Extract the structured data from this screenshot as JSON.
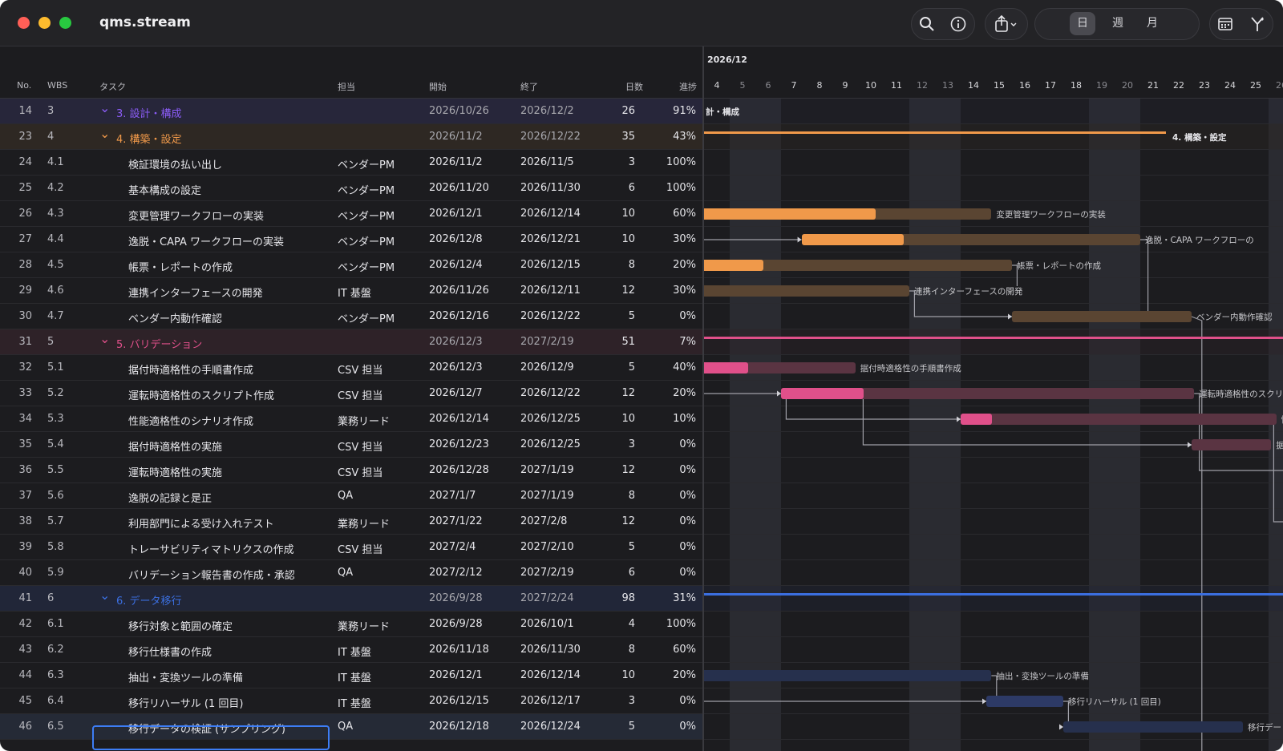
{
  "app": {
    "title": "qms.stream"
  },
  "toolbar": {
    "search_icon": "search-icon",
    "info_icon": "info-icon",
    "share_icon": "share-icon",
    "view_day": "日",
    "view_week": "週",
    "view_month": "月",
    "calendar_icon": "calendar-icon",
    "branch_icon": "branch-icon"
  },
  "columns": {
    "no": "No.",
    "wbs": "WBS",
    "task": "タスク",
    "owner": "担当",
    "start": "開始",
    "end": "終了",
    "days": "日数",
    "progress": "進捗"
  },
  "gantt": {
    "month_label": "2026/12",
    "days": [
      "4",
      "5",
      "6",
      "7",
      "8",
      "9",
      "10",
      "11",
      "12",
      "13",
      "14",
      "15",
      "16",
      "17",
      "18",
      "19",
      "20",
      "21",
      "22",
      "23",
      "24",
      "25",
      "26"
    ],
    "weekend_days": [
      "5",
      "6",
      "12",
      "13",
      "19",
      "20",
      "26"
    ]
  },
  "rows": [
    {
      "no": "14",
      "wbs": "3",
      "task": "3. 設計・構成",
      "owner": "",
      "start": "2026/10/26",
      "end": "2026/12/2",
      "days": "26",
      "progress": "91%",
      "group": true,
      "color": "#8b5cf6"
    },
    {
      "no": "23",
      "wbs": "4",
      "task": "4. 構築・設定",
      "owner": "",
      "start": "2026/11/2",
      "end": "2026/12/22",
      "days": "35",
      "progress": "43%",
      "group": true,
      "color": "#f0994a"
    },
    {
      "no": "24",
      "wbs": "4.1",
      "task": "検証環境の払い出し",
      "owner": "ベンダーPM",
      "start": "2026/11/2",
      "end": "2026/11/5",
      "days": "3",
      "progress": "100%"
    },
    {
      "no": "25",
      "wbs": "4.2",
      "task": "基本構成の設定",
      "owner": "ベンダーPM",
      "start": "2026/11/20",
      "end": "2026/11/30",
      "days": "6",
      "progress": "100%"
    },
    {
      "no": "26",
      "wbs": "4.3",
      "task": "変更管理ワークフローの実装",
      "owner": "ベンダーPM",
      "start": "2026/12/1",
      "end": "2026/12/14",
      "days": "10",
      "progress": "60%"
    },
    {
      "no": "27",
      "wbs": "4.4",
      "task": "逸脱・CAPA ワークフローの実装",
      "owner": "ベンダーPM",
      "start": "2026/12/8",
      "end": "2026/12/21",
      "days": "10",
      "progress": "30%"
    },
    {
      "no": "28",
      "wbs": "4.5",
      "task": "帳票・レポートの作成",
      "owner": "ベンダーPM",
      "start": "2026/12/4",
      "end": "2026/12/15",
      "days": "8",
      "progress": "20%"
    },
    {
      "no": "29",
      "wbs": "4.6",
      "task": "連携インターフェースの開発",
      "owner": "IT 基盤",
      "start": "2026/11/26",
      "end": "2026/12/11",
      "days": "12",
      "progress": "30%"
    },
    {
      "no": "30",
      "wbs": "4.7",
      "task": "ベンダー内動作確認",
      "owner": "ベンダーPM",
      "start": "2026/12/16",
      "end": "2026/12/22",
      "days": "5",
      "progress": "0%"
    },
    {
      "no": "31",
      "wbs": "5",
      "task": "5. バリデーション",
      "owner": "",
      "start": "2026/12/3",
      "end": "2027/2/19",
      "days": "51",
      "progress": "7%",
      "group": true,
      "color": "#e0508a"
    },
    {
      "no": "32",
      "wbs": "5.1",
      "task": "据付時適格性の手順書作成",
      "owner": "CSV 担当",
      "start": "2026/12/3",
      "end": "2026/12/9",
      "days": "5",
      "progress": "40%"
    },
    {
      "no": "33",
      "wbs": "5.2",
      "task": "運転時適格性のスクリプト作成",
      "owner": "CSV 担当",
      "start": "2026/12/7",
      "end": "2026/12/22",
      "days": "12",
      "progress": "20%"
    },
    {
      "no": "34",
      "wbs": "5.3",
      "task": "性能適格性のシナリオ作成",
      "owner": "業務リード",
      "start": "2026/12/14",
      "end": "2026/12/25",
      "days": "10",
      "progress": "10%"
    },
    {
      "no": "35",
      "wbs": "5.4",
      "task": "据付時適格性の実施",
      "owner": "CSV 担当",
      "start": "2026/12/23",
      "end": "2026/12/25",
      "days": "3",
      "progress": "0%"
    },
    {
      "no": "36",
      "wbs": "5.5",
      "task": "運転時適格性の実施",
      "owner": "CSV 担当",
      "start": "2026/12/28",
      "end": "2027/1/19",
      "days": "12",
      "progress": "0%"
    },
    {
      "no": "37",
      "wbs": "5.6",
      "task": "逸脱の記録と是正",
      "owner": "QA",
      "start": "2027/1/7",
      "end": "2027/1/19",
      "days": "8",
      "progress": "0%"
    },
    {
      "no": "38",
      "wbs": "5.7",
      "task": "利用部門による受け入れテスト",
      "owner": "業務リード",
      "start": "2027/1/22",
      "end": "2027/2/8",
      "days": "12",
      "progress": "0%"
    },
    {
      "no": "39",
      "wbs": "5.8",
      "task": "トレーサビリティマトリクスの作成",
      "owner": "CSV 担当",
      "start": "2027/2/4",
      "end": "2027/2/10",
      "days": "5",
      "progress": "0%"
    },
    {
      "no": "40",
      "wbs": "5.9",
      "task": "バリデーション報告書の作成・承認",
      "owner": "QA",
      "start": "2027/2/12",
      "end": "2027/2/19",
      "days": "6",
      "progress": "0%"
    },
    {
      "no": "41",
      "wbs": "6",
      "task": "6. データ移行",
      "owner": "",
      "start": "2026/9/28",
      "end": "2027/2/24",
      "days": "98",
      "progress": "31%",
      "group": true,
      "color": "#3b6fe0"
    },
    {
      "no": "42",
      "wbs": "6.1",
      "task": "移行対象と範囲の確定",
      "owner": "業務リード",
      "start": "2026/9/28",
      "end": "2026/10/1",
      "days": "4",
      "progress": "100%"
    },
    {
      "no": "43",
      "wbs": "6.2",
      "task": "移行仕様書の作成",
      "owner": "IT 基盤",
      "start": "2026/11/18",
      "end": "2026/11/30",
      "days": "8",
      "progress": "60%"
    },
    {
      "no": "44",
      "wbs": "6.3",
      "task": "抽出・変換ツールの準備",
      "owner": "IT 基盤",
      "start": "2026/12/1",
      "end": "2026/12/14",
      "days": "10",
      "progress": "20%"
    },
    {
      "no": "45",
      "wbs": "6.4",
      "task": "移行リハーサル (1 回目)",
      "owner": "IT 基盤",
      "start": "2026/12/15",
      "end": "2026/12/17",
      "days": "3",
      "progress": "0%"
    },
    {
      "no": "46",
      "wbs": "6.5",
      "task": "移行データの検証 (サンプリング)",
      "owner": "QA",
      "start": "2026/12/18",
      "end": "2026/12/24",
      "days": "5",
      "progress": "0%",
      "selected": true
    }
  ],
  "bar_labels": {
    "g3": "計・構成",
    "g4": "4. 構築・設定",
    "t43": "変更管理ワークフローの実装",
    "t44": "逸脱・CAPA ワークフローの",
    "t45": "帳票・レポートの作成",
    "t46": "連携インターフェースの開発",
    "t47": "ベンダー内動作確認",
    "t51": "据付時適格性の手順書作成",
    "t52": "運転時適格性のスクリ",
    "t53": "性",
    "t54": "据",
    "t63": "抽出・変換ツールの準備",
    "t64": "移行リハーサル (1 回目)",
    "t65": "移行デー"
  },
  "colors": {
    "orange": "#f0994a",
    "pink": "#e0508a",
    "blue": "#3b6fe0",
    "purple": "#8b5cf6",
    "selection": "#3d7df5"
  }
}
